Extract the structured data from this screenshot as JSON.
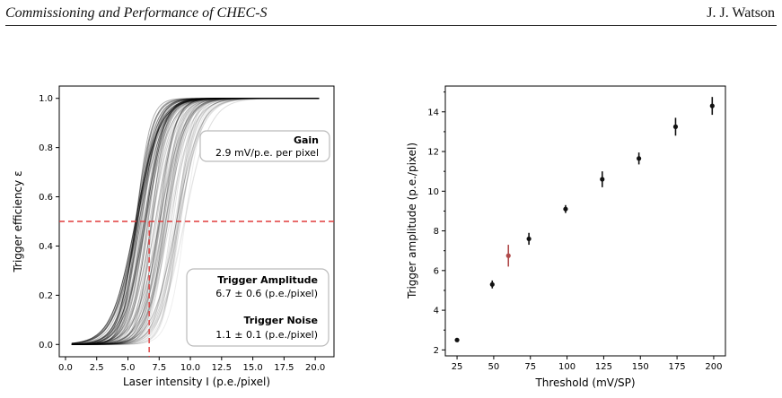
{
  "header": {
    "title": "Commissioning and Performance of CHEC-S",
    "author": "J. J. Watson"
  },
  "chart_data": [
    {
      "type": "line",
      "xlabel": "Laser intensity I (p.e./pixel)",
      "ylabel": "Trigger efficiency ε",
      "xlim": [
        -0.5,
        21.5
      ],
      "ylim": [
        -0.05,
        1.05
      ],
      "xticks": [
        "0.0",
        "2.5",
        "5.0",
        "7.5",
        "10.0",
        "12.5",
        "15.0",
        "17.5",
        "20.0"
      ],
      "yticks": [
        "0.0",
        "0.2",
        "0.4",
        "0.6",
        "0.8",
        "1.0"
      ],
      "grid": false,
      "curves": {
        "count": 90,
        "mid_min": 5.6,
        "mid_max": 9.6,
        "width_min": 0.55,
        "width_max": 1.0,
        "x_start": 0.5,
        "x_end": 20.4,
        "color": "#000000"
      },
      "hline": {
        "y": 0.5,
        "color": "#e03c3c"
      },
      "vline": {
        "x": 6.7,
        "color": "#e03c3c"
      },
      "annotations": {
        "gain_title": "Gain",
        "gain_value": "2.9 mV/p.e. per pixel",
        "amp_title": "Trigger Amplitude",
        "amp_value": "6.7 ± 0.6 (p.e./pixel)",
        "noise_title": "Trigger Noise",
        "noise_value": "1.1 ± 0.1 (p.e./pixel)"
      }
    },
    {
      "type": "scatter",
      "xlabel": "Threshold (mV/SP)",
      "ylabel": "Trigger amplitude (p.e./pixel)",
      "xlim": [
        17,
        208
      ],
      "ylim": [
        1.7,
        15.3
      ],
      "xticks": [
        "25",
        "50",
        "75",
        "100",
        "125",
        "150",
        "175",
        "200"
      ],
      "yticks": [
        "2",
        "4",
        "6",
        "8",
        "10",
        "12",
        "14"
      ],
      "grid": false,
      "points": [
        {
          "x": 25,
          "y": 2.5,
          "err": 0.05,
          "color": "#111111"
        },
        {
          "x": 49,
          "y": 5.3,
          "err": 0.2,
          "color": "#111111"
        },
        {
          "x": 60,
          "y": 6.75,
          "err": 0.55,
          "color": "#b04a4a"
        },
        {
          "x": 74,
          "y": 7.6,
          "err": 0.3,
          "color": "#111111"
        },
        {
          "x": 99,
          "y": 9.1,
          "err": 0.2,
          "color": "#111111"
        },
        {
          "x": 124,
          "y": 10.6,
          "err": 0.4,
          "color": "#111111"
        },
        {
          "x": 149,
          "y": 11.65,
          "err": 0.3,
          "color": "#111111"
        },
        {
          "x": 174,
          "y": 13.25,
          "err": 0.45,
          "color": "#111111"
        },
        {
          "x": 199,
          "y": 14.3,
          "err": 0.45,
          "color": "#111111"
        }
      ]
    }
  ]
}
